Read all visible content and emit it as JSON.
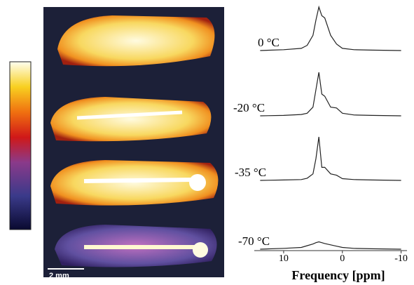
{
  "figure": {
    "scale_bar": "2 mm"
  },
  "chart_data": {
    "type": "line",
    "xlabel": "Frequency [ppm]",
    "x": [
      14,
      10,
      7,
      6,
      5,
      4.5,
      4,
      3.5,
      3,
      2,
      1,
      0,
      -2,
      -5,
      -10
    ],
    "xlim": [
      15,
      -11
    ],
    "xticks": [
      10,
      0,
      -10
    ],
    "ylim": [
      0,
      1
    ],
    "series": [
      {
        "name": "0 °C",
        "color": "#222222",
        "values": [
          0,
          0.02,
          0.05,
          0.12,
          0.35,
          0.7,
          1.0,
          0.8,
          0.75,
          0.35,
          0.15,
          0.05,
          0.02,
          0.01,
          0
        ]
      },
      {
        "name": "-20 °C",
        "color": "#222222",
        "values": [
          0,
          0.01,
          0.03,
          0.06,
          0.2,
          0.6,
          1.0,
          0.5,
          0.45,
          0.2,
          0.18,
          0.06,
          0.02,
          0.01,
          0
        ]
      },
      {
        "name": "-35 °C",
        "color": "#222222",
        "values": [
          0,
          0.01,
          0.02,
          0.05,
          0.15,
          0.5,
          1.0,
          0.3,
          0.3,
          0.15,
          0.12,
          0.04,
          0.02,
          0.01,
          0
        ]
      },
      {
        "name": "-70 °C",
        "color": "#222222",
        "values": [
          0,
          0.02,
          0.04,
          0.08,
          0.12,
          0.15,
          0.17,
          0.15,
          0.13,
          0.1,
          0.07,
          0.04,
          0.02,
          0.01,
          0
        ]
      }
    ]
  }
}
